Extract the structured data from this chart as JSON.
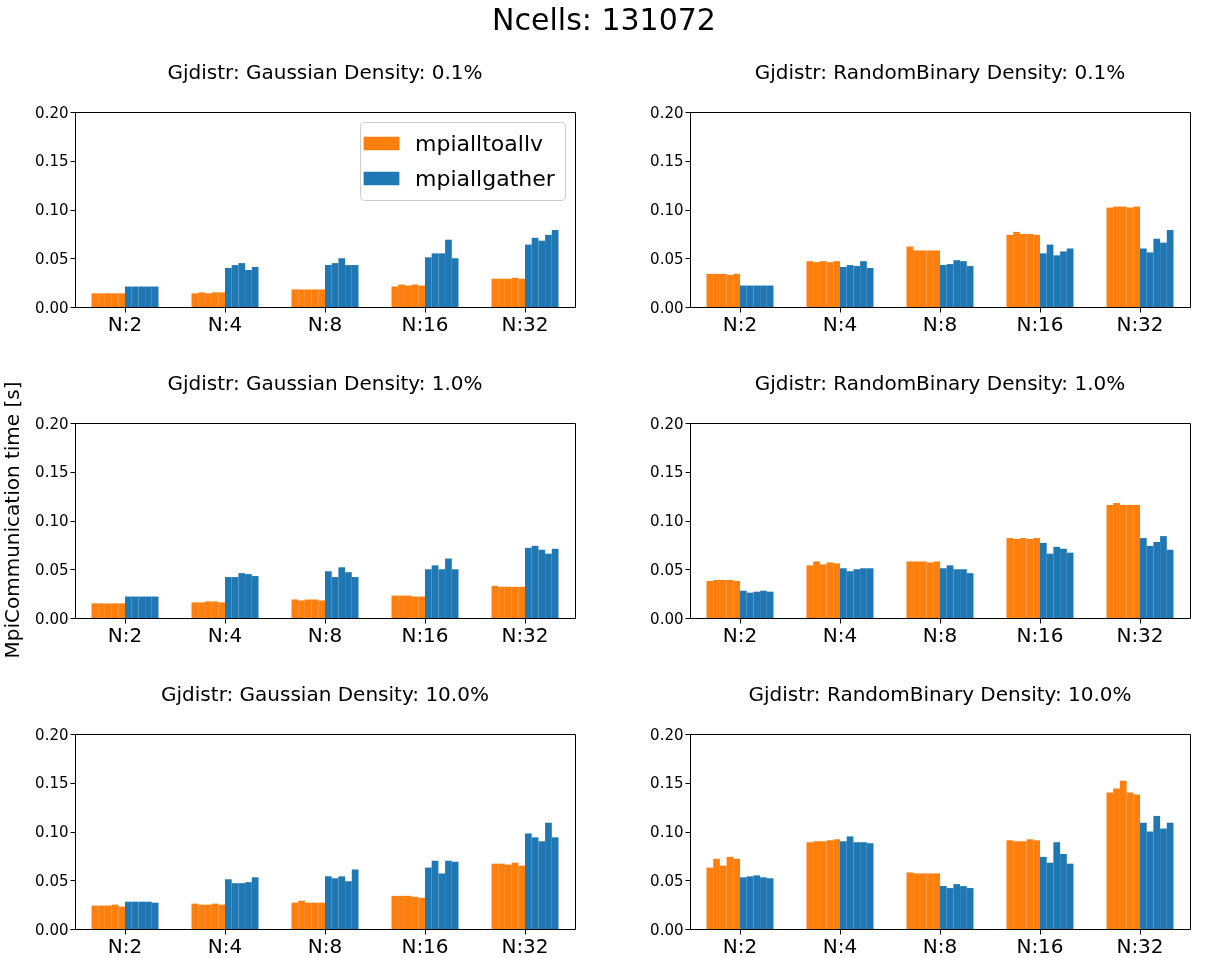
{
  "chart_data": [
    {
      "type": "bar",
      "title": "Gjdistr: Gaussian   Density: 0.1%",
      "annotations": [
        "Ncells: 131072"
      ],
      "legend": "top right",
      "categories": [
        "N:2",
        "N:4",
        "N:8",
        "N:16",
        "N:32"
      ],
      "ylim": [
        0,
        0.2
      ],
      "yticks": [
        {
          "value": 0,
          "label": "0.00"
        },
        {
          "value": 0.05,
          "label": "0.05"
        },
        {
          "value": 0.1,
          "label": "0.10"
        },
        {
          "value": 0.15,
          "label": "0.15"
        },
        {
          "value": 0.2,
          "label": "0.20"
        }
      ],
      "series": [
        {
          "name": "mpialltoallv",
          "color": "#ff7f0e",
          "values": [
            0.014,
            0.014,
            0.018,
            0.021,
            0.029
          ]
        },
        {
          "color": "#ff7f0e",
          "values": [
            0.014,
            0.015,
            0.018,
            0.023,
            0.029
          ]
        },
        {
          "color": "#ff7f0e",
          "values": [
            0.014,
            0.014,
            0.018,
            0.022,
            0.029
          ]
        },
        {
          "color": "#ff7f0e",
          "values": [
            0.014,
            0.015,
            0.018,
            0.023,
            0.03
          ]
        },
        {
          "color": "#ff7f0e",
          "values": [
            0.014,
            0.015,
            0.018,
            0.022,
            0.029
          ]
        },
        {
          "name": "mpiallgather",
          "color": "#1f77b4",
          "values": [
            0.021,
            0.04,
            0.043,
            0.051,
            0.064
          ]
        },
        {
          "color": "#1f77b4",
          "values": [
            0.021,
            0.043,
            0.045,
            0.055,
            0.071
          ]
        },
        {
          "color": "#1f77b4",
          "values": [
            0.021,
            0.045,
            0.05,
            0.055,
            0.068
          ]
        },
        {
          "color": "#1f77b4",
          "values": [
            0.021,
            0.038,
            0.043,
            0.069,
            0.074
          ]
        },
        {
          "color": "#1f77b4",
          "values": [
            0.021,
            0.041,
            0.043,
            0.05,
            0.079
          ]
        }
      ]
    },
    {
      "type": "bar",
      "title": "Gjdistr: RandomBinary   Density: 0.1%",
      "categories": [
        "N:2",
        "N:4",
        "N:8",
        "N:16",
        "N:32"
      ],
      "ylim": [
        0,
        0.2
      ],
      "yticks": [
        {
          "value": 0,
          "label": "0.00"
        },
        {
          "value": 0.05,
          "label": "0.05"
        },
        {
          "value": 0.1,
          "label": "0.10"
        },
        {
          "value": 0.15,
          "label": "0.15"
        },
        {
          "value": 0.2,
          "label": "0.20"
        }
      ],
      "series": [
        {
          "color": "#ff7f0e",
          "values": [
            0.034,
            0.047,
            0.062,
            0.074,
            0.102
          ]
        },
        {
          "color": "#ff7f0e",
          "values": [
            0.034,
            0.046,
            0.058,
            0.077,
            0.103
          ]
        },
        {
          "color": "#ff7f0e",
          "values": [
            0.034,
            0.047,
            0.058,
            0.075,
            0.103
          ]
        },
        {
          "color": "#ff7f0e",
          "values": [
            0.033,
            0.046,
            0.058,
            0.075,
            0.102
          ]
        },
        {
          "color": "#ff7f0e",
          "values": [
            0.034,
            0.047,
            0.058,
            0.074,
            0.103
          ]
        },
        {
          "color": "#1f77b4",
          "values": [
            0.022,
            0.041,
            0.043,
            0.055,
            0.06
          ]
        },
        {
          "color": "#1f77b4",
          "values": [
            0.022,
            0.043,
            0.044,
            0.064,
            0.056
          ]
        },
        {
          "color": "#1f77b4",
          "values": [
            0.022,
            0.042,
            0.048,
            0.053,
            0.07
          ]
        },
        {
          "color": "#1f77b4",
          "values": [
            0.022,
            0.047,
            0.047,
            0.057,
            0.066
          ]
        },
        {
          "color": "#1f77b4",
          "values": [
            0.022,
            0.04,
            0.042,
            0.06,
            0.079
          ]
        }
      ]
    },
    {
      "type": "bar",
      "title": "Gjdistr: Gaussian   Density: 1.0%",
      "ylabel": "MpiCommunication time [s]",
      "categories": [
        "N:2",
        "N:4",
        "N:8",
        "N:16",
        "N:32"
      ],
      "ylim": [
        0,
        0.2
      ],
      "yticks": [
        {
          "value": 0,
          "label": "0.00"
        },
        {
          "value": 0.05,
          "label": "0.05"
        },
        {
          "value": 0.1,
          "label": "0.10"
        },
        {
          "value": 0.15,
          "label": "0.15"
        },
        {
          "value": 0.2,
          "label": "0.20"
        }
      ],
      "series": [
        {
          "color": "#ff7f0e",
          "values": [
            0.015,
            0.016,
            0.019,
            0.023,
            0.033
          ]
        },
        {
          "color": "#ff7f0e",
          "values": [
            0.015,
            0.016,
            0.018,
            0.023,
            0.032
          ]
        },
        {
          "color": "#ff7f0e",
          "values": [
            0.015,
            0.017,
            0.019,
            0.023,
            0.032
          ]
        },
        {
          "color": "#ff7f0e",
          "values": [
            0.015,
            0.017,
            0.019,
            0.022,
            0.032
          ]
        },
        {
          "color": "#ff7f0e",
          "values": [
            0.015,
            0.016,
            0.018,
            0.022,
            0.032
          ]
        },
        {
          "color": "#1f77b4",
          "values": [
            0.022,
            0.042,
            0.048,
            0.05,
            0.072
          ]
        },
        {
          "color": "#1f77b4",
          "values": [
            0.022,
            0.042,
            0.042,
            0.054,
            0.074
          ]
        },
        {
          "color": "#1f77b4",
          "values": [
            0.022,
            0.046,
            0.052,
            0.05,
            0.07
          ]
        },
        {
          "color": "#1f77b4",
          "values": [
            0.022,
            0.045,
            0.047,
            0.061,
            0.066
          ]
        },
        {
          "color": "#1f77b4",
          "values": [
            0.022,
            0.043,
            0.042,
            0.05,
            0.071
          ]
        }
      ]
    },
    {
      "type": "bar",
      "title": "Gjdistr: RandomBinary   Density: 1.0%",
      "categories": [
        "N:2",
        "N:4",
        "N:8",
        "N:16",
        "N:32"
      ],
      "ylim": [
        0,
        0.2
      ],
      "yticks": [
        {
          "value": 0,
          "label": "0.00"
        },
        {
          "value": 0.05,
          "label": "0.05"
        },
        {
          "value": 0.1,
          "label": "0.10"
        },
        {
          "value": 0.15,
          "label": "0.15"
        },
        {
          "value": 0.2,
          "label": "0.20"
        }
      ],
      "series": [
        {
          "color": "#ff7f0e",
          "values": [
            0.038,
            0.054,
            0.058,
            0.082,
            0.116
          ]
        },
        {
          "color": "#ff7f0e",
          "values": [
            0.039,
            0.058,
            0.058,
            0.081,
            0.118
          ]
        },
        {
          "color": "#ff7f0e",
          "values": [
            0.039,
            0.055,
            0.058,
            0.082,
            0.116
          ]
        },
        {
          "color": "#ff7f0e",
          "values": [
            0.039,
            0.057,
            0.057,
            0.081,
            0.116
          ]
        },
        {
          "color": "#ff7f0e",
          "values": [
            0.038,
            0.056,
            0.058,
            0.082,
            0.116
          ]
        },
        {
          "color": "#1f77b4",
          "values": [
            0.028,
            0.051,
            0.051,
            0.077,
            0.082
          ]
        },
        {
          "color": "#1f77b4",
          "values": [
            0.026,
            0.048,
            0.054,
            0.066,
            0.074
          ]
        },
        {
          "color": "#1f77b4",
          "values": [
            0.027,
            0.05,
            0.05,
            0.073,
            0.078
          ]
        },
        {
          "color": "#1f77b4",
          "values": [
            0.028,
            0.051,
            0.05,
            0.071,
            0.084
          ]
        },
        {
          "color": "#1f77b4",
          "values": [
            0.027,
            0.051,
            0.046,
            0.067,
            0.07
          ]
        }
      ]
    },
    {
      "type": "bar",
      "title": "Gjdistr: Gaussian   Density: 10.0%",
      "categories": [
        "N:2",
        "N:4",
        "N:8",
        "N:16",
        "N:32"
      ],
      "ylim": [
        0,
        0.2
      ],
      "yticks": [
        {
          "value": 0,
          "label": "0.00"
        },
        {
          "value": 0.05,
          "label": "0.05"
        },
        {
          "value": 0.1,
          "label": "0.10"
        },
        {
          "value": 0.15,
          "label": "0.15"
        },
        {
          "value": 0.2,
          "label": "0.20"
        }
      ],
      "series": [
        {
          "color": "#ff7f0e",
          "values": [
            0.024,
            0.026,
            0.027,
            0.034,
            0.067
          ]
        },
        {
          "color": "#ff7f0e",
          "values": [
            0.024,
            0.025,
            0.029,
            0.034,
            0.067
          ]
        },
        {
          "color": "#ff7f0e",
          "values": [
            0.024,
            0.025,
            0.027,
            0.034,
            0.066
          ]
        },
        {
          "color": "#ff7f0e",
          "values": [
            0.025,
            0.026,
            0.027,
            0.033,
            0.068
          ]
        },
        {
          "color": "#ff7f0e",
          "values": [
            0.023,
            0.025,
            0.027,
            0.032,
            0.065
          ]
        },
        {
          "color": "#1f77b4",
          "values": [
            0.028,
            0.051,
            0.054,
            0.063,
            0.098
          ]
        },
        {
          "color": "#1f77b4",
          "values": [
            0.028,
            0.047,
            0.052,
            0.07,
            0.094
          ]
        },
        {
          "color": "#1f77b4",
          "values": [
            0.028,
            0.047,
            0.054,
            0.057,
            0.09
          ]
        },
        {
          "color": "#1f77b4",
          "values": [
            0.028,
            0.048,
            0.049,
            0.07,
            0.109
          ]
        },
        {
          "color": "#1f77b4",
          "values": [
            0.027,
            0.053,
            0.061,
            0.069,
            0.094
          ]
        }
      ]
    },
    {
      "type": "bar",
      "title": "Gjdistr: RandomBinary   Density: 10.0%",
      "categories": [
        "N:2",
        "N:4",
        "N:8",
        "N:16",
        "N:32"
      ],
      "ylim": [
        0,
        0.2
      ],
      "yticks": [
        {
          "value": 0,
          "label": "0.00"
        },
        {
          "value": 0.05,
          "label": "0.05"
        },
        {
          "value": 0.1,
          "label": "0.10"
        },
        {
          "value": 0.15,
          "label": "0.15"
        },
        {
          "value": 0.2,
          "label": "0.20"
        }
      ],
      "series": [
        {
          "color": "#ff7f0e",
          "values": [
            0.063,
            0.089,
            0.058,
            0.091,
            0.14
          ]
        },
        {
          "color": "#ff7f0e",
          "values": [
            0.072,
            0.09,
            0.057,
            0.09,
            0.144
          ]
        },
        {
          "color": "#ff7f0e",
          "values": [
            0.065,
            0.09,
            0.057,
            0.09,
            0.152
          ]
        },
        {
          "color": "#ff7f0e",
          "values": [
            0.074,
            0.091,
            0.057,
            0.092,
            0.14
          ]
        },
        {
          "color": "#ff7f0e",
          "values": [
            0.072,
            0.092,
            0.057,
            0.091,
            0.138
          ]
        },
        {
          "color": "#1f77b4",
          "values": [
            0.053,
            0.09,
            0.044,
            0.074,
            0.109
          ]
        },
        {
          "color": "#1f77b4",
          "values": [
            0.054,
            0.095,
            0.042,
            0.068,
            0.1
          ]
        },
        {
          "color": "#1f77b4",
          "values": [
            0.055,
            0.089,
            0.046,
            0.089,
            0.116
          ]
        },
        {
          "color": "#1f77b4",
          "values": [
            0.053,
            0.089,
            0.044,
            0.077,
            0.103
          ]
        },
        {
          "color": "#1f77b4",
          "values": [
            0.052,
            0.088,
            0.042,
            0.067,
            0.109
          ]
        }
      ]
    }
  ]
}
